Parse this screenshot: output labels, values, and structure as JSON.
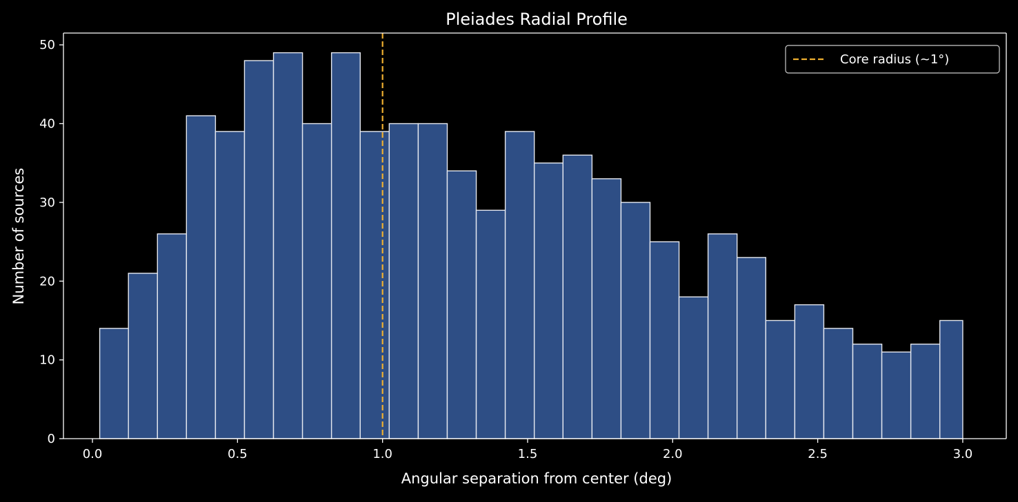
{
  "chart_data": {
    "type": "bar",
    "title": "Pleiades Radial Profile",
    "xlabel": "Angular separation from center (deg)",
    "ylabel": "Number of sources",
    "bin_edges": [
      0.025,
      0.124,
      0.224,
      0.324,
      0.424,
      0.524,
      0.624,
      0.724,
      0.824,
      0.923,
      1.023,
      1.123,
      1.223,
      1.323,
      1.423,
      1.523,
      1.622,
      1.722,
      1.822,
      1.922,
      2.022,
      2.122,
      2.222,
      2.321,
      2.421,
      2.521,
      2.621,
      2.721,
      2.821,
      2.921,
      3.0
    ],
    "values": [
      14,
      21,
      26,
      41,
      39,
      48,
      49,
      40,
      49,
      39,
      40,
      40,
      34,
      29,
      39,
      35,
      36,
      33,
      30,
      25,
      18,
      26,
      23,
      15,
      17,
      14,
      12,
      11,
      12,
      15
    ],
    "xlim": [
      -0.1,
      3.15
    ],
    "ylim": [
      0,
      51.5
    ],
    "x_ticks": [
      0.0,
      0.5,
      1.0,
      1.5,
      2.0,
      2.5,
      3.0
    ],
    "x_tick_labels": [
      "0.0",
      "0.5",
      "1.0",
      "1.5",
      "2.0",
      "2.5",
      "3.0"
    ],
    "y_ticks": [
      0,
      10,
      20,
      30,
      40,
      50
    ],
    "y_tick_labels": [
      "0",
      "10",
      "20",
      "30",
      "40",
      "50"
    ],
    "bar_color": "#2e4e85",
    "bar_edge_color": "#e6e9f0",
    "grid": false,
    "reference_line": {
      "x": 1.0,
      "label": "Core radius (~1°)",
      "color": "#f0b030",
      "style": "dashed"
    },
    "legend": {
      "placement": "top-right",
      "entries": [
        "Core radius (~1°)"
      ]
    }
  },
  "colors": {
    "background": "#000000",
    "foreground": "#ffffff"
  }
}
